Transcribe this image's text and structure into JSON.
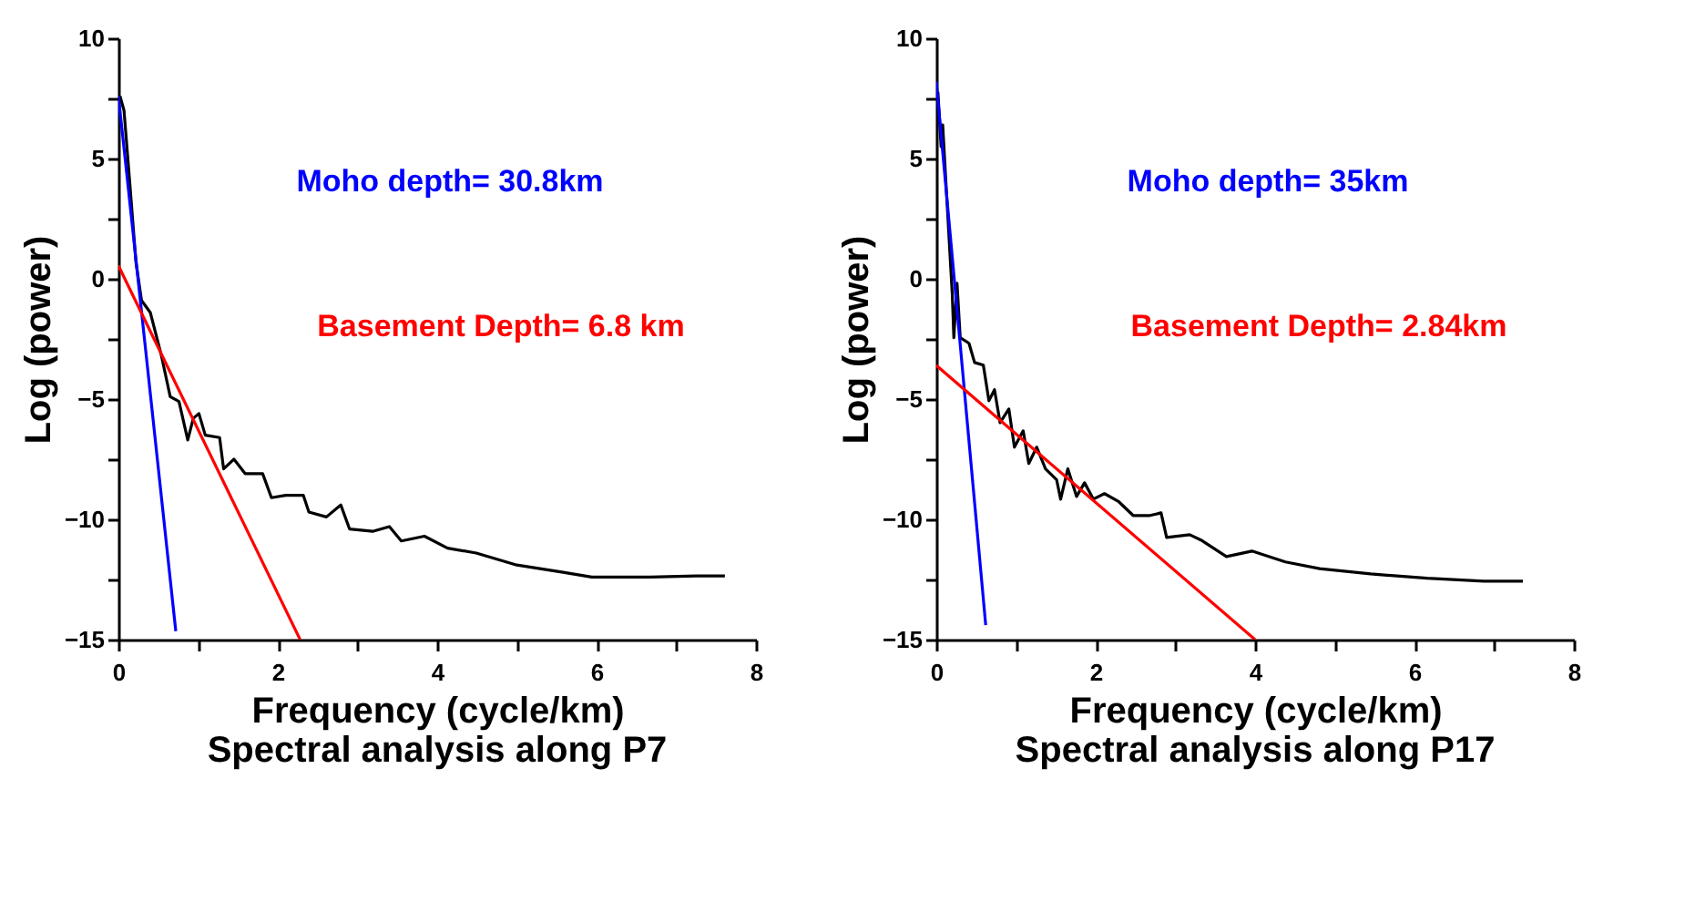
{
  "chart_data": [
    {
      "type": "line",
      "title": "Spectral analysis along P7",
      "xlabel": "Frequency (cycle/km)",
      "ylabel": "Log (power)",
      "xlim": [
        0,
        8
      ],
      "xticks": [
        0,
        {
          "value": 1,
          "label": null
        },
        2,
        {
          "value": 3,
          "label": null
        },
        4,
        {
          "value": 5,
          "label": null
        },
        6,
        {
          "value": 7,
          "label": null
        },
        8
      ],
      "ylim": [
        -15,
        10
      ],
      "yticks": [
        -15,
        {
          "value": -12.5,
          "label": null
        },
        -10,
        {
          "value": -7.5,
          "label": null
        },
        -5,
        {
          "value": -2.5,
          "label": null
        },
        0,
        {
          "value": 2.5,
          "label": null
        },
        5,
        {
          "value": 7.5,
          "label": null
        },
        10
      ],
      "grid": false,
      "marker": "none",
      "line_style": "solid",
      "series": [
        {
          "color": "#000000",
          "x": [
            0.02,
            0.07,
            0.14,
            0.22,
            0.29,
            0.4,
            0.54,
            0.65,
            0.76,
            0.87,
            0.94,
            1.01,
            1.09,
            1.27,
            1.32,
            1.45,
            1.59,
            1.81,
            1.92,
            2.1,
            2.32,
            2.39,
            2.61,
            2.79,
            2.9,
            3.19,
            3.4,
            3.55,
            3.84,
            4.13,
            4.49,
            5.0,
            5.58,
            5.94,
            6.67,
            7.25,
            7.61
          ],
          "values": [
            7.6,
            7.0,
            4.1,
            0.7,
            -0.9,
            -1.4,
            -3.2,
            -4.9,
            -5.1,
            -6.7,
            -5.8,
            -5.6,
            -6.5,
            -6.6,
            -7.9,
            -7.5,
            -8.1,
            -8.1,
            -9.1,
            -9.0,
            -9.0,
            -9.7,
            -9.9,
            -9.4,
            -10.4,
            -10.5,
            -10.3,
            -10.9,
            -10.7,
            -11.2,
            -11.4,
            -11.9,
            -12.2,
            -12.4,
            -12.4,
            -12.35,
            -12.35
          ]
        },
        {
          "name": "Moho depth= 30.8km",
          "color": "#0000ff",
          "x": [
            0,
            0.72
          ],
          "values": [
            7.6,
            -14.65
          ]
        },
        {
          "name": "Basement Depth= 6.8 km",
          "color": "#ff0000",
          "x": [
            0,
            2.28
          ],
          "values": [
            0.55,
            -15
          ]
        }
      ]
    },
    {
      "type": "line",
      "title": "Spectral analysis along P17",
      "xlabel": "Frequency (cycle/km)",
      "ylabel": "Log (power)",
      "xlim": [
        0,
        8
      ],
      "xticks": [
        0,
        {
          "value": 1,
          "label": null
        },
        2,
        {
          "value": 3,
          "label": null
        },
        4,
        {
          "value": 5,
          "label": null
        },
        6,
        {
          "value": 7,
          "label": null
        },
        8
      ],
      "ylim": [
        -15,
        10
      ],
      "yticks": [
        -15,
        {
          "value": -12.5,
          "label": null
        },
        -10,
        {
          "value": -7.5,
          "label": null
        },
        -5,
        {
          "value": -2.5,
          "label": null
        },
        0,
        {
          "value": 2.5,
          "label": null
        },
        5,
        {
          "value": 7.5,
          "label": null
        },
        10
      ],
      "grid": false,
      "marker": "none",
      "line_style": "solid",
      "series": [
        {
          "color": "#000000",
          "x": [
            0.02,
            0.06,
            0.08,
            0.13,
            0.2,
            0.22,
            0.26,
            0.3,
            0.41,
            0.48,
            0.59,
            0.66,
            0.73,
            0.8,
            0.91,
            0.98,
            1.09,
            1.16,
            1.26,
            1.37,
            1.51,
            1.56,
            1.65,
            1.76,
            1.86,
            1.97,
            2.11,
            2.29,
            2.47,
            2.68,
            2.82,
            2.89,
            3.18,
            3.32,
            3.64,
            3.96,
            4.38,
            4.81,
            5.45,
            6.16,
            6.87,
            7.36
          ],
          "values": [
            7.77,
            5.5,
            6.4,
            3.45,
            -0.64,
            -2.45,
            -0.18,
            -2.45,
            -2.68,
            -3.48,
            -3.59,
            -5.07,
            -4.61,
            -5.98,
            -5.41,
            -7.0,
            -6.32,
            -7.68,
            -7.0,
            -7.9,
            -8.36,
            -9.16,
            -7.9,
            -9.05,
            -8.48,
            -9.16,
            -8.93,
            -9.27,
            -9.84,
            -9.84,
            -9.73,
            -10.75,
            -10.64,
            -10.86,
            -11.55,
            -11.32,
            -11.77,
            -12.05,
            -12.27,
            -12.45,
            -12.57,
            -12.57
          ]
        },
        {
          "name": "Moho depth= 35km",
          "color": "#0000ff",
          "x": [
            0,
            0.62
          ],
          "values": [
            8.2,
            -14.4
          ]
        },
        {
          "name": "Basement Depth= 2.84km",
          "color": "#ff0000",
          "x": [
            0,
            4
          ],
          "values": [
            -3.6,
            -15
          ]
        }
      ]
    }
  ]
}
